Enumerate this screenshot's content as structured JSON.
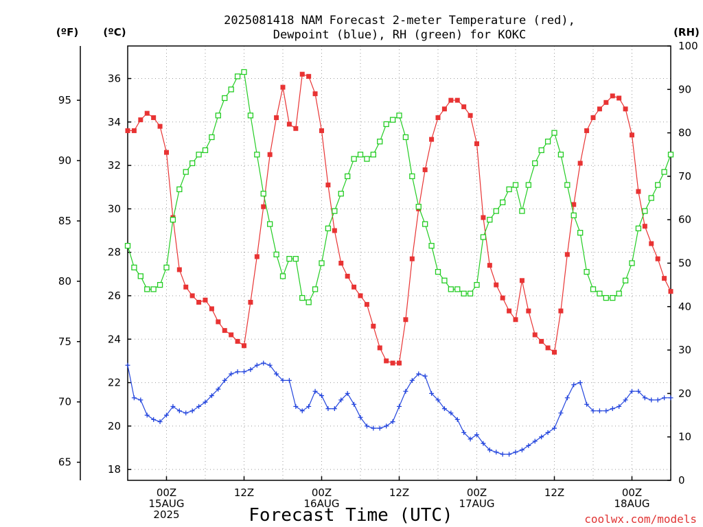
{
  "chart_data": {
    "type": "line",
    "title_line1": "2025081418 NAM Forecast 2-meter Temperature (red),",
    "title_line2": "Dewpoint (blue), RH (green) for KOKC",
    "xlabel": "Forecast Time (UTC)",
    "credit": "coolwx.com/models",
    "unit_labels": {
      "f": "(ºF)",
      "c": "(ºC)",
      "rh": "(RH)"
    },
    "ylim_c": [
      17.5,
      37.5
    ],
    "ylim_rh": [
      0,
      100
    ],
    "ylim_f": [
      63.5,
      99.5
    ],
    "y_ticks_c": [
      18,
      20,
      22,
      24,
      26,
      28,
      30,
      32,
      34,
      36
    ],
    "y_ticks_f": [
      65,
      70,
      75,
      80,
      85,
      90,
      95
    ],
    "y_ticks_rh": [
      0,
      10,
      20,
      30,
      40,
      50,
      60,
      70,
      80,
      90,
      100
    ],
    "x_range_hours": [
      -6,
      78
    ],
    "x_ticks": [
      {
        "hour": 0,
        "line1": "00Z",
        "line2": "15AUG",
        "line3": "2025"
      },
      {
        "hour": 12,
        "line1": "12Z",
        "line2": "",
        "line3": ""
      },
      {
        "hour": 24,
        "line1": "00Z",
        "line2": "16AUG",
        "line3": ""
      },
      {
        "hour": 36,
        "line1": "12Z",
        "line2": "",
        "line3": ""
      },
      {
        "hour": 48,
        "line1": "00Z",
        "line2": "17AUG",
        "line3": ""
      },
      {
        "hour": 60,
        "line1": "12Z",
        "line2": "",
        "line3": ""
      },
      {
        "hour": 72,
        "line1": "00Z",
        "line2": "18AUG",
        "line3": ""
      }
    ],
    "series": [
      {
        "key": "temperature",
        "axis": "c",
        "color": "#e83333",
        "marker": "filled-square",
        "start_hour": -6,
        "step_hours": 1,
        "values": [
          33.6,
          33.6,
          34.1,
          34.4,
          34.2,
          33.8,
          32.6,
          29.6,
          27.2,
          26.4,
          26.0,
          25.7,
          25.8,
          25.4,
          24.8,
          24.4,
          24.2,
          23.9,
          23.7,
          25.7,
          27.8,
          30.1,
          32.5,
          34.2,
          35.6,
          33.9,
          33.7,
          36.2,
          36.1,
          35.3,
          33.6,
          31.1,
          29.0,
          27.5,
          26.9,
          26.4,
          26.0,
          25.6,
          24.6,
          23.6,
          23.0,
          22.9,
          22.9,
          24.9,
          27.7,
          30.0,
          31.8,
          33.2,
          34.2,
          34.6,
          35.0,
          35.0,
          34.7,
          34.3,
          33.0,
          29.6,
          27.4,
          26.5,
          25.9,
          25.3,
          24.9,
          26.7,
          25.3,
          24.2,
          23.9,
          23.6,
          23.4,
          25.3,
          27.9,
          30.2,
          32.1,
          33.6,
          34.2,
          34.6,
          34.9,
          35.2,
          35.1,
          34.6,
          33.4,
          30.8,
          29.2,
          28.4,
          27.7,
          26.8,
          26.2
        ]
      },
      {
        "key": "dewpoint",
        "axis": "c",
        "color": "#2244dd",
        "marker": "plus",
        "start_hour": -6,
        "step_hours": 1,
        "values": [
          22.8,
          21.3,
          21.2,
          20.5,
          20.3,
          20.2,
          20.5,
          20.9,
          20.7,
          20.6,
          20.7,
          20.9,
          21.1,
          21.4,
          21.7,
          22.1,
          22.4,
          22.5,
          22.5,
          22.6,
          22.8,
          22.9,
          22.8,
          22.4,
          22.1,
          22.1,
          20.9,
          20.7,
          20.9,
          21.6,
          21.4,
          20.8,
          20.8,
          21.2,
          21.5,
          21.0,
          20.4,
          20.0,
          19.9,
          19.9,
          20.0,
          20.2,
          20.9,
          21.6,
          22.1,
          22.4,
          22.3,
          21.5,
          21.2,
          20.8,
          20.6,
          20.3,
          19.7,
          19.4,
          19.6,
          19.2,
          18.9,
          18.8,
          18.7,
          18.7,
          18.8,
          18.9,
          19.1,
          19.3,
          19.5,
          19.7,
          19.9,
          20.6,
          21.3,
          21.9,
          22.0,
          21.0,
          20.7,
          20.7,
          20.7,
          20.8,
          20.9,
          21.2,
          21.6,
          21.6,
          21.3,
          21.2,
          21.2,
          21.3,
          21.3
        ]
      },
      {
        "key": "rh",
        "axis": "rh",
        "color": "#22cc22",
        "marker": "open-square",
        "start_hour": -6,
        "step_hours": 1,
        "values": [
          54,
          49,
          47,
          44,
          44,
          45,
          49,
          60,
          67,
          71,
          73,
          75,
          76,
          79,
          84,
          88,
          90,
          93,
          94,
          84,
          75,
          66,
          59,
          52,
          47,
          51,
          51,
          42,
          41,
          44,
          50,
          58,
          62,
          66,
          70,
          74,
          75,
          74,
          75,
          78,
          82,
          83,
          84,
          79,
          70,
          63,
          59,
          54,
          48,
          46,
          44,
          44,
          43,
          43,
          45,
          56,
          60,
          62,
          64,
          67,
          68,
          62,
          68,
          73,
          76,
          78,
          80,
          75,
          68,
          61,
          57,
          48,
          44,
          43,
          42,
          42,
          43,
          46,
          50,
          58,
          62,
          65,
          68,
          71,
          75
        ]
      }
    ]
  }
}
